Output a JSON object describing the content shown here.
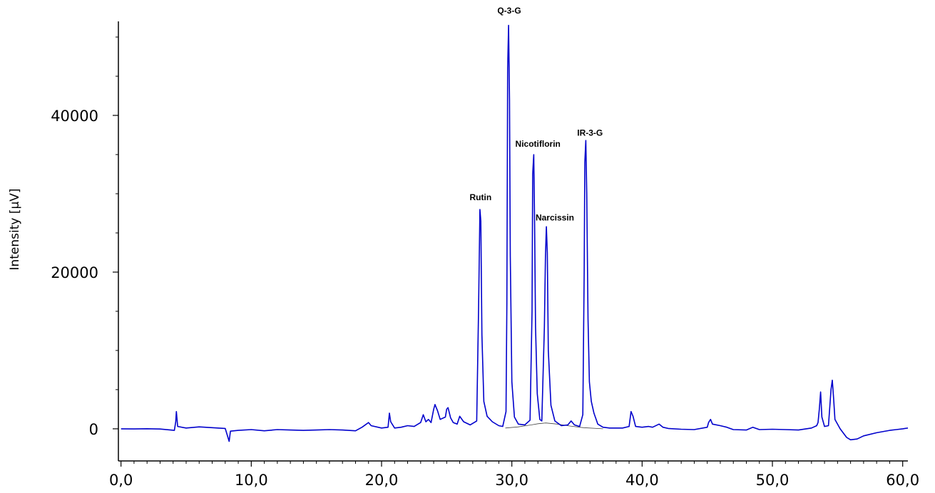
{
  "chart_data": {
    "type": "line",
    "title": "",
    "xlabel": "",
    "ylabel": "Intensity [µV]",
    "xlim": [
      -0.2,
      60.4
    ],
    "ylim": [
      -4100,
      52000
    ],
    "x_ticks": [
      0,
      10,
      20,
      30,
      40,
      50,
      60
    ],
    "x_tick_labels": [
      "0,0",
      "10,0",
      "20,0",
      "30,0",
      "40,0",
      "50,0",
      "60,0"
    ],
    "y_ticks": [
      0,
      20000,
      40000
    ],
    "y_tick_labels": [
      "0",
      "20000",
      "40000"
    ],
    "grid": false,
    "colors": {
      "trace": "#0000cc",
      "baseline": "#444444",
      "axis": "#000000"
    },
    "series": [
      {
        "values": [
          [
            0,
            0
          ],
          [
            1,
            -20
          ],
          [
            2,
            10
          ],
          [
            3,
            -30
          ],
          [
            4.1,
            -200
          ],
          [
            4.2,
            900
          ],
          [
            4.25,
            2200
          ],
          [
            4.35,
            300
          ],
          [
            5,
            100
          ],
          [
            6,
            250
          ],
          [
            7,
            150
          ],
          [
            8,
            50
          ],
          [
            8.3,
            -1600
          ],
          [
            8.4,
            -300
          ],
          [
            9,
            -200
          ],
          [
            10,
            -100
          ],
          [
            11,
            -250
          ],
          [
            12,
            -100
          ],
          [
            13,
            -150
          ],
          [
            14,
            -200
          ],
          [
            15,
            -150
          ],
          [
            16,
            -100
          ],
          [
            17,
            -150
          ],
          [
            18,
            -250
          ],
          [
            18.5,
            200
          ],
          [
            19,
            800
          ],
          [
            19.2,
            400
          ],
          [
            20,
            100
          ],
          [
            20.5,
            200
          ],
          [
            20.6,
            2000
          ],
          [
            20.7,
            900
          ],
          [
            21,
            100
          ],
          [
            21.5,
            200
          ],
          [
            22,
            400
          ],
          [
            22.5,
            300
          ],
          [
            23,
            800
          ],
          [
            23.2,
            1800
          ],
          [
            23.4,
            900
          ],
          [
            23.6,
            1200
          ],
          [
            23.8,
            800
          ],
          [
            24,
            2500
          ],
          [
            24.1,
            3100
          ],
          [
            24.3,
            2300
          ],
          [
            24.5,
            1200
          ],
          [
            24.9,
            1500
          ],
          [
            25,
            2500
          ],
          [
            25.1,
            2700
          ],
          [
            25.3,
            1400
          ],
          [
            25.5,
            800
          ],
          [
            25.8,
            600
          ],
          [
            26,
            1600
          ],
          [
            26.3,
            900
          ],
          [
            26.8,
            500
          ],
          [
            27.3,
            1000
          ],
          [
            27.45,
            15700
          ],
          [
            27.55,
            28000
          ],
          [
            27.62,
            26500
          ],
          [
            27.7,
            12000
          ],
          [
            27.85,
            3500
          ],
          [
            28.1,
            1600
          ],
          [
            28.5,
            900
          ],
          [
            29,
            400
          ],
          [
            29.3,
            300
          ],
          [
            29.55,
            2200
          ],
          [
            29.62,
            16000
          ],
          [
            29.68,
            46000
          ],
          [
            29.75,
            51500
          ],
          [
            29.82,
            42000
          ],
          [
            29.88,
            22000
          ],
          [
            30,
            6000
          ],
          [
            30.2,
            1500
          ],
          [
            30.5,
            600
          ],
          [
            31,
            500
          ],
          [
            31.4,
            1100
          ],
          [
            31.55,
            15000
          ],
          [
            31.6,
            32500
          ],
          [
            31.68,
            35000
          ],
          [
            31.75,
            26000
          ],
          [
            31.82,
            13000
          ],
          [
            31.95,
            4500
          ],
          [
            32.15,
            1200
          ],
          [
            32.3,
            1000
          ],
          [
            32.5,
            13000
          ],
          [
            32.58,
            22000
          ],
          [
            32.65,
            25800
          ],
          [
            32.72,
            22500
          ],
          [
            32.8,
            10000
          ],
          [
            33,
            3000
          ],
          [
            33.3,
            1000
          ],
          [
            33.8,
            400
          ],
          [
            34.3,
            500
          ],
          [
            34.55,
            1000
          ],
          [
            34.8,
            500
          ],
          [
            35.2,
            300
          ],
          [
            35.45,
            1800
          ],
          [
            35.55,
            20000
          ],
          [
            35.6,
            34000
          ],
          [
            35.68,
            36800
          ],
          [
            35.75,
            30000
          ],
          [
            35.85,
            14000
          ],
          [
            35.95,
            6000
          ],
          [
            36.1,
            3500
          ],
          [
            36.3,
            2000
          ],
          [
            36.6,
            600
          ],
          [
            37,
            200
          ],
          [
            37.5,
            100
          ],
          [
            38,
            100
          ],
          [
            38.5,
            100
          ],
          [
            39,
            300
          ],
          [
            39.15,
            2200
          ],
          [
            39.3,
            1600
          ],
          [
            39.5,
            300
          ],
          [
            40,
            200
          ],
          [
            40.5,
            300
          ],
          [
            40.8,
            200
          ],
          [
            41.3,
            600
          ],
          [
            41.6,
            200
          ],
          [
            42,
            50
          ],
          [
            43,
            -50
          ],
          [
            44,
            -100
          ],
          [
            45,
            200
          ],
          [
            45.1,
            800
          ],
          [
            45.25,
            1200
          ],
          [
            45.4,
            600
          ],
          [
            46,
            400
          ],
          [
            46.5,
            200
          ],
          [
            47,
            -100
          ],
          [
            48,
            -150
          ],
          [
            48.5,
            200
          ],
          [
            49,
            -100
          ],
          [
            50,
            -50
          ],
          [
            51,
            -100
          ],
          [
            52,
            -150
          ],
          [
            53,
            100
          ],
          [
            53.4,
            400
          ],
          [
            53.5,
            800
          ],
          [
            53.6,
            2500
          ],
          [
            53.7,
            4700
          ],
          [
            53.8,
            1500
          ],
          [
            54,
            300
          ],
          [
            54.3,
            400
          ],
          [
            54.5,
            5000
          ],
          [
            54.6,
            6200
          ],
          [
            54.7,
            3800
          ],
          [
            54.8,
            1200
          ],
          [
            55.2,
            0
          ],
          [
            55.7,
            -1100
          ],
          [
            56,
            -1400
          ],
          [
            56.5,
            -1300
          ],
          [
            57,
            -900
          ],
          [
            58,
            -500
          ],
          [
            59,
            -200
          ],
          [
            59.5,
            -100
          ],
          [
            60,
            0
          ],
          [
            60.4,
            100
          ]
        ]
      }
    ],
    "baseline": {
      "values": [
        [
          29.5,
          100
        ],
        [
          30.5,
          250
        ],
        [
          31.5,
          500
        ],
        [
          32,
          650
        ],
        [
          32.6,
          750
        ],
        [
          33.5,
          600
        ],
        [
          34.5,
          350
        ],
        [
          35.5,
          150
        ],
        [
          37,
          0
        ]
      ]
    },
    "annotations": [
      {
        "text": "Rutin",
        "x": 27.6,
        "y": 29200
      },
      {
        "text": "Q-3-G",
        "x": 29.8,
        "y": 53000
      },
      {
        "text": "Nicotiflorin",
        "x": 32.0,
        "y": 36000
      },
      {
        "text": "Narcissin",
        "x": 33.3,
        "y": 26600
      },
      {
        "text": "IR-3-G",
        "x": 36.0,
        "y": 37400
      }
    ]
  }
}
